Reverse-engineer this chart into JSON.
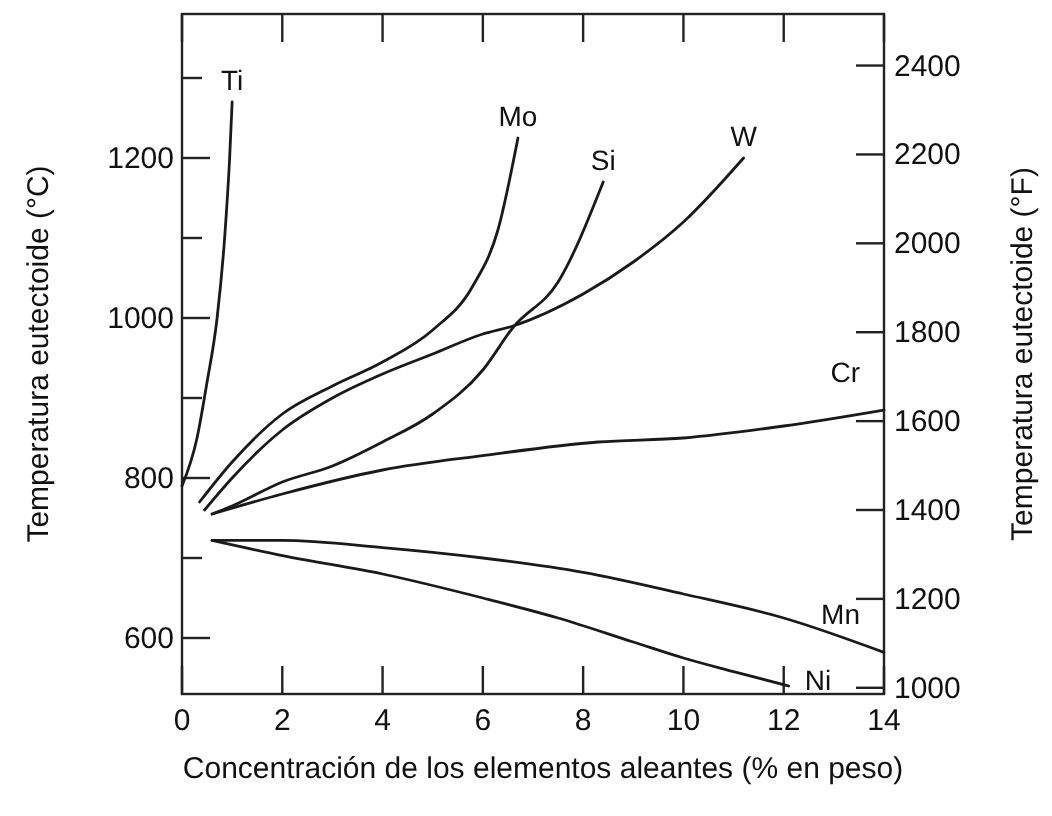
{
  "chart_data": {
    "type": "line",
    "xlabel": "Concentración de los elementos aleantes (% en peso)",
    "ylabel": "Temperatura eutectoide (°C)",
    "y2label": "Temperatura eutectoide (°F)",
    "xlim": [
      0,
      14
    ],
    "xticks": [
      0,
      2,
      4,
      6,
      8,
      10,
      12,
      14
    ],
    "ylim": [
      530,
      1380
    ],
    "yticks": [
      600,
      {
        "value": 700,
        "label": null
      },
      800,
      {
        "value": 900,
        "label": null
      },
      1000,
      {
        "value": 1100,
        "label": null
      },
      1200,
      {
        "value": 1300,
        "label": null
      }
    ],
    "y2lim": [
      986,
      2516
    ],
    "y2ticks": [
      1000,
      1200,
      1400,
      1600,
      1800,
      2000,
      2200,
      2400
    ],
    "grid": false,
    "marker": "none",
    "line_style": "solid",
    "series": [
      {
        "name": "Ti",
        "color": "#1a1a1a",
        "x": [
          0,
          0.3,
          0.5,
          0.7,
          0.85,
          0.95,
          1.0
        ],
        "values": [
          790,
          850,
          920,
          1000,
          1100,
          1200,
          1270
        ]
      },
      {
        "name": "Mo",
        "color": "#1a1a1a",
        "x": [
          0.35,
          1,
          2,
          3,
          4,
          5,
          5.8,
          6.3,
          6.7
        ],
        "values": [
          770,
          820,
          880,
          915,
          945,
          985,
          1040,
          1110,
          1225
        ]
      },
      {
        "name": "Si",
        "color": "#1a1a1a",
        "x": [
          0.6,
          1,
          2,
          3,
          4,
          5,
          6,
          6.6,
          7.5,
          8.4
        ],
        "values": [
          755,
          765,
          795,
          815,
          845,
          880,
          935,
          988,
          1045,
          1170
        ]
      },
      {
        "name": "W",
        "color": "#1a1a1a",
        "x": [
          0.45,
          1,
          2,
          3,
          4,
          5,
          6,
          6.6,
          8,
          9,
          10,
          11.2
        ],
        "values": [
          760,
          800,
          860,
          900,
          930,
          955,
          980,
          990,
          1030,
          1070,
          1120,
          1200
        ]
      },
      {
        "name": "Cr",
        "color": "#1a1a1a",
        "x": [
          0.6,
          2,
          4,
          6,
          8.3,
          10,
          12,
          14
        ],
        "values": [
          755,
          780,
          810,
          828,
          845,
          850,
          865,
          885
        ]
      },
      {
        "name": "Mn",
        "color": "#1a1a1a",
        "x": [
          0.6,
          2,
          4,
          6,
          8,
          10,
          12,
          14
        ],
        "values": [
          722,
          722,
          713,
          700,
          682,
          655,
          625,
          582
        ]
      },
      {
        "name": "Ni",
        "color": "#1a1a1a",
        "x": [
          0.6,
          2,
          4,
          6,
          7.5,
          9,
          10,
          11,
          12.1
        ],
        "values": [
          722,
          703,
          680,
          650,
          625,
          595,
          575,
          558,
          540
        ]
      }
    ]
  }
}
